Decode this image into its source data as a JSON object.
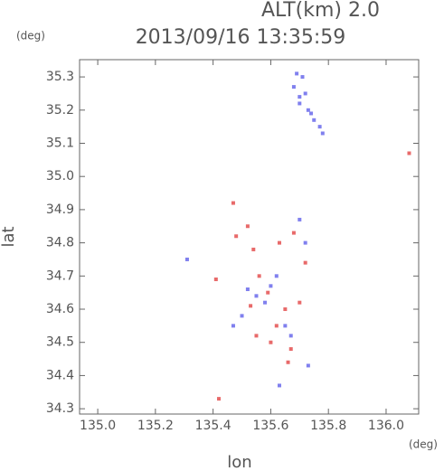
{
  "chart_data": {
    "type": "scatter",
    "title": "2013/09/16 13:35:59",
    "annotation": "ALT(km) 2.0",
    "x_label": "lon",
    "y_label": "lat",
    "x_unit": "(deg)",
    "y_unit": "(deg)",
    "xlim": [
      134.937,
      136.113
    ],
    "ylim": [
      34.284,
      35.352
    ],
    "xticks": [
      {
        "value": 135.0,
        "label": "135.0"
      },
      135.2,
      135.4,
      135.6,
      135.8,
      {
        "value": 136.0,
        "label": "136.0"
      }
    ],
    "yticks": [
      34.3,
      34.4,
      34.5,
      34.6,
      34.7,
      34.8,
      34.9,
      {
        "value": 35.0,
        "label": "35.0"
      },
      35.1,
      35.2,
      35.3
    ],
    "series": [
      {
        "color": "#8080ee",
        "x": [
          135.69,
          135.71,
          135.68,
          135.72,
          135.7,
          135.73,
          135.75,
          135.77,
          135.78,
          135.74,
          135.7,
          135.52,
          135.55,
          135.6,
          135.62,
          135.58,
          135.5,
          135.65,
          135.67,
          135.7,
          135.72,
          135.31,
          135.47,
          135.63,
          135.73
        ],
        "y": [
          35.31,
          35.3,
          35.27,
          35.25,
          35.22,
          35.2,
          35.17,
          35.15,
          35.13,
          35.19,
          35.24,
          34.66,
          34.64,
          34.67,
          34.7,
          34.62,
          34.58,
          34.55,
          34.52,
          34.87,
          34.8,
          34.75,
          34.55,
          34.37,
          34.43
        ]
      },
      {
        "color": "#e86a6a",
        "x": [
          135.47,
          135.52,
          135.48,
          135.54,
          135.63,
          135.68,
          135.72,
          135.56,
          135.59,
          135.53,
          135.65,
          135.62,
          135.6,
          135.55,
          135.67,
          135.66,
          135.42,
          135.41,
          136.08,
          135.7
        ],
        "y": [
          34.92,
          34.85,
          34.82,
          34.78,
          34.8,
          34.83,
          34.74,
          34.7,
          34.65,
          34.61,
          34.6,
          34.55,
          34.5,
          34.52,
          34.48,
          34.44,
          34.33,
          34.69,
          35.07,
          34.62
        ]
      }
    ]
  }
}
